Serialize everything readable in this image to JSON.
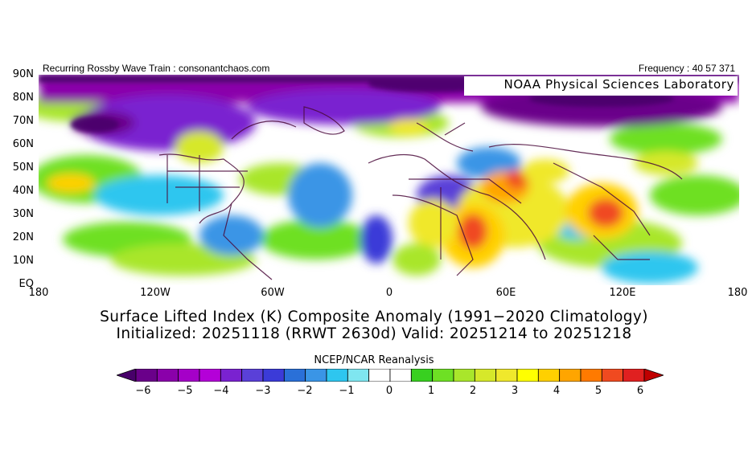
{
  "header": {
    "left": "Recurring Rossby Wave Train : consonantchaos.com",
    "right": "Frequency : 40 57 371",
    "lab": "NOAA Physical Sciences Laboratory"
  },
  "map": {
    "lat_labels": [
      "90N",
      "80N",
      "70N",
      "60N",
      "50N",
      "40N",
      "30N",
      "20N",
      "10N",
      "EQ"
    ],
    "lon_labels": [
      "180",
      "120W",
      "60W",
      "0",
      "60E",
      "120E",
      "180"
    ],
    "lat_range": [
      0,
      90
    ],
    "lon_range": [
      -180,
      180
    ]
  },
  "title": {
    "line1": "Surface Lifted Index (K) Composite Anomaly (1991−2020 Climatology)",
    "line2": "Initialized: 20251118 (RRWT 2630d) Valid: 20251214 to 20251218"
  },
  "colorbar": {
    "title": "NCEP/NCAR Reanalysis",
    "tick_labels": [
      "−6",
      "−5",
      "−4",
      "−3",
      "−2",
      "−1",
      "0",
      "1",
      "2",
      "3",
      "4",
      "5",
      "6"
    ],
    "colors": [
      "#48006a",
      "#6a008a",
      "#8a00aa",
      "#a500c8",
      "#b400d8",
      "#7a22d0",
      "#5a40d8",
      "#3b3bd8",
      "#2a70d8",
      "#3a95e6",
      "#2ec6ef",
      "#7fe6f0",
      "#ffffff",
      "#ffffff",
      "#38d020",
      "#6ee024",
      "#a9e62b",
      "#d6e82a",
      "#f0e82c",
      "#ffff00",
      "#ffd000",
      "#ffa500",
      "#ff7a00",
      "#f04a20",
      "#e02020",
      "#c00000"
    ]
  }
}
